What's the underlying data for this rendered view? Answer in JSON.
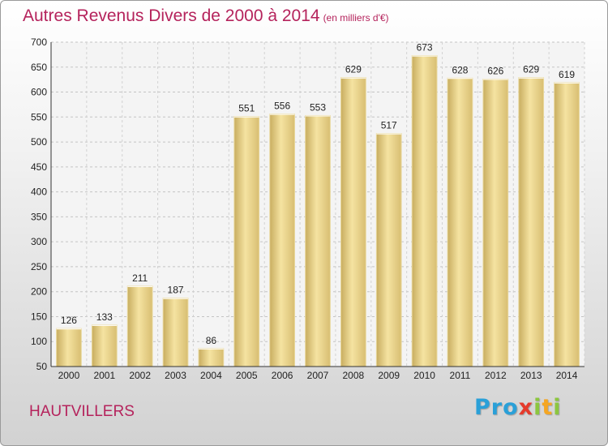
{
  "title": "Autres Revenus Divers de 2000 à 2014",
  "subtitle": "(en milliers d'€)",
  "location": "HAUTVILLERS",
  "brand": "Proxiti",
  "colors": {
    "title": "#b5235c",
    "bar_light": "#f5e3a1",
    "bar_dark": "#c8ad60"
  },
  "chart_data": {
    "type": "bar",
    "categories": [
      "2000",
      "2001",
      "2002",
      "2003",
      "2004",
      "2005",
      "2006",
      "2007",
      "2008",
      "2009",
      "2010",
      "2011",
      "2012",
      "2013",
      "2014"
    ],
    "values": [
      126,
      133,
      211,
      187,
      86,
      551,
      556,
      553,
      629,
      517,
      673,
      628,
      626,
      629,
      619
    ],
    "ylim": [
      50,
      700
    ],
    "yticks": [
      50,
      100,
      150,
      200,
      250,
      300,
      350,
      400,
      450,
      500,
      550,
      600,
      650,
      700
    ],
    "grid": true,
    "data_labels": true
  }
}
